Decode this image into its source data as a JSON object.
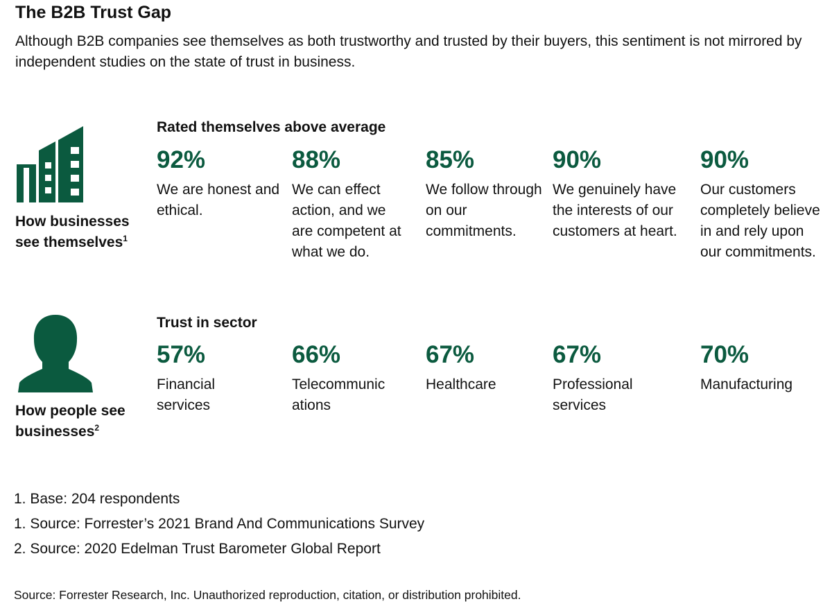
{
  "title": "The B2B Trust Gap",
  "subtitle": "Although B2B companies see themselves as both trustworthy and trusted by their buyers, this sentiment is not mirrored by independent studies on the state of trust in business.",
  "colors": {
    "accent": "#0b5a3f",
    "text": "#111111"
  },
  "chart_data": {
    "type": "table",
    "rows": [
      {
        "icon": "building-icon",
        "label": "How businesses see themselves",
        "label_note": "1",
        "heading": "Rated themselves above average",
        "unit": "%",
        "items": [
          {
            "value": 92,
            "pct": "92%",
            "text": "We are honest and ethical."
          },
          {
            "value": 88,
            "pct": "88%",
            "text": "We can effect action, and we are competent at what we do."
          },
          {
            "value": 85,
            "pct": "85%",
            "text": "We follow through on our commitments."
          },
          {
            "value": 90,
            "pct": "90%",
            "text": "We genuinely have the interests of our customers at heart."
          },
          {
            "value": 90,
            "pct": "90%",
            "text": "Our customers completely believe in and rely upon our commitments."
          }
        ]
      },
      {
        "icon": "person-icon",
        "label": "How people see businesses",
        "label_note": "2",
        "heading": "Trust in sector",
        "unit": "%",
        "items": [
          {
            "value": 57,
            "pct": "57%",
            "text": "Financial services"
          },
          {
            "value": 66,
            "pct": "66%",
            "text": "Telecommunications"
          },
          {
            "value": 67,
            "pct": "67%",
            "text": "Healthcare"
          },
          {
            "value": 67,
            "pct": "67%",
            "text": "Professional services"
          },
          {
            "value": 70,
            "pct": "70%",
            "text": "Manufacturing"
          }
        ]
      }
    ]
  },
  "footnotes": [
    "1. Base: 204 respondents",
    "1. Source: Forrester’s 2021 Brand And Communications Survey",
    "2. Source: 2020 Edelman Trust Barometer Global Report"
  ],
  "source": "Source: Forrester Research, Inc. Unauthorized reproduction, citation, or distribution prohibited."
}
